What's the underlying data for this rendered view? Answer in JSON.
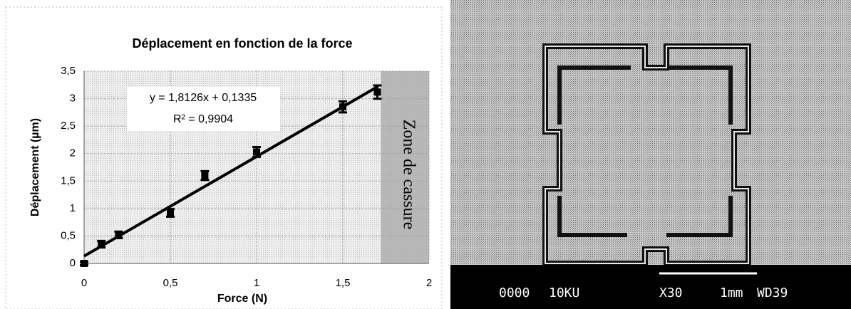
{
  "chart_data": {
    "type": "scatter",
    "title": "Déplacement en fonction de la force",
    "xlabel": "Force (N)",
    "ylabel": "Déplacement (µm)",
    "x": [
      0,
      0.1,
      0.2,
      0.5,
      0.7,
      1.0,
      1.5,
      1.7
    ],
    "series": [
      {
        "color": "#000000",
        "values": [
          0,
          0.35,
          0.52,
          0.92,
          1.6,
          2.03,
          2.85,
          3.12
        ],
        "errors": [
          0.03,
          0.06,
          0.06,
          0.07,
          0.08,
          0.09,
          0.1,
          0.12
        ]
      }
    ],
    "trendline": {
      "slope": 1.8126,
      "intercept": 0.1335,
      "equation": "y = 1,8126x + 0,1335",
      "r2_label": "R² = 0,9904"
    },
    "zone": {
      "label": "Zone de cassure",
      "x_start": 1.72
    },
    "xlim": [
      0,
      2
    ],
    "ylim": [
      0,
      3.5
    ],
    "xticks": [
      0,
      {
        "value": 0.5,
        "label": "0,5"
      },
      1,
      {
        "value": 1.5,
        "label": "1,5"
      },
      2
    ],
    "yticks": [
      0,
      {
        "value": 0.5,
        "label": "0,5"
      },
      1,
      {
        "value": 1.5,
        "label": "1,5"
      },
      2,
      {
        "value": 2.5,
        "label": "2,5"
      },
      3,
      {
        "value": 3.5,
        "label": "3,5"
      }
    ],
    "grid": true
  },
  "sem_image": {
    "labels": [
      "0000",
      "10KU",
      "X30",
      "1mm",
      "WD39"
    ]
  }
}
